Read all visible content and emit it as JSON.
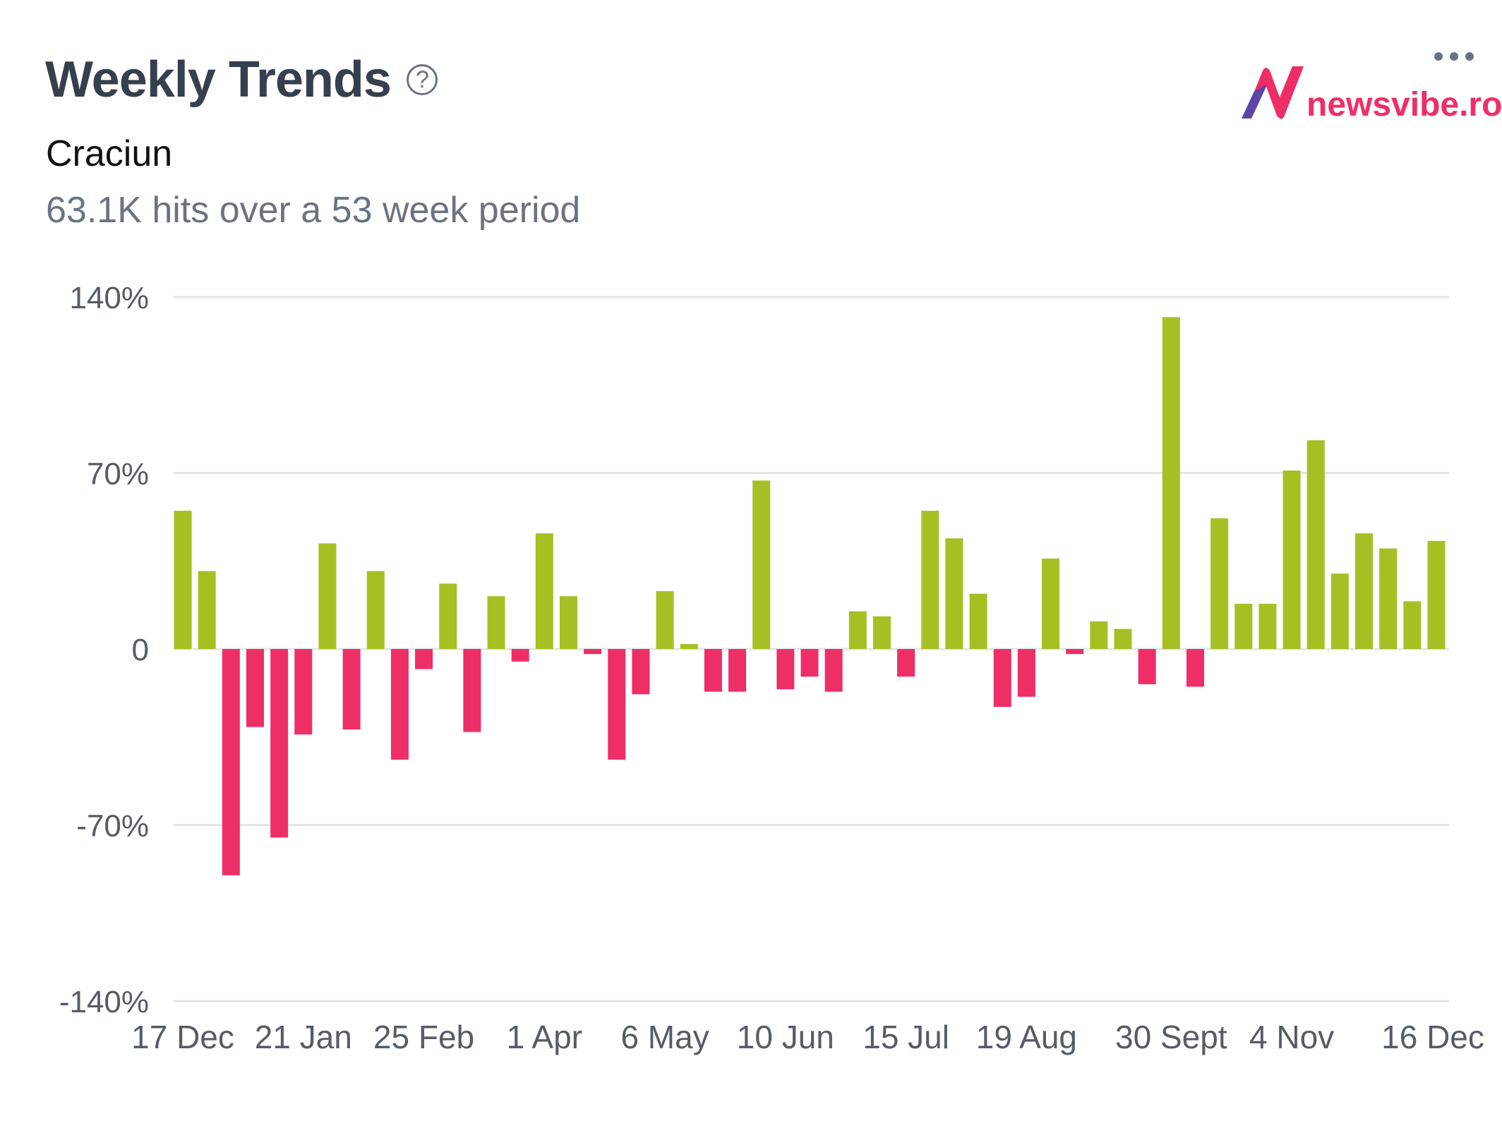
{
  "header": {
    "title": "Weekly Trends",
    "help_icon": "question-circle-icon",
    "subtitle": "Craciun",
    "summary": "63.1K hits over a 53 week period",
    "menu_icon": "more-horizontal-icon"
  },
  "logo": {
    "text": "newsvibe.ro",
    "brand_color": "#ee2e67",
    "accent_color": "#5b45a8"
  },
  "chart_data": {
    "type": "bar",
    "title": "",
    "xlabel": "",
    "ylabel": "",
    "ylim": [
      -140,
      140
    ],
    "y_ticks": [
      {
        "value": 140,
        "label": "140%"
      },
      {
        "value": 70,
        "label": "70%"
      },
      {
        "value": 0,
        "label": "0"
      },
      {
        "value": -70,
        "label": "-70%"
      },
      {
        "value": -140,
        "label": "-140%"
      }
    ],
    "grid": true,
    "legend": "none",
    "positive_color": "#a6c023",
    "negative_color": "#ee2e67",
    "categories": [
      "17 Dec",
      "",
      "",
      "",
      "",
      "21 Jan",
      "",
      "",
      "",
      "",
      "25 Feb",
      "",
      "",
      "",
      "",
      "1 Apr",
      "",
      "",
      "",
      "",
      "6 May",
      "",
      "",
      "",
      "",
      "10 Jun",
      "",
      "",
      "",
      "",
      "15 Jul",
      "",
      "",
      "",
      "",
      "19 Aug",
      "",
      "",
      "",
      "",
      "",
      "30 Sept",
      "",
      "",
      "",
      "",
      "4 Nov",
      "",
      "",
      "",
      "",
      "",
      "16 Dec"
    ],
    "values": [
      55,
      31,
      -90,
      -31,
      -75,
      -34,
      42,
      -32,
      31,
      -44,
      -8,
      26,
      -33,
      21,
      -5,
      46,
      21,
      -2,
      -44,
      -18,
      23,
      2,
      -17,
      -17,
      67,
      -16,
      -11,
      -17,
      15,
      13,
      -11,
      55,
      44,
      22,
      -23,
      -19,
      36,
      -2,
      11,
      8,
      -14,
      132,
      -15,
      52,
      18,
      18,
      71,
      83,
      30,
      46,
      40,
      19,
      43
    ]
  }
}
